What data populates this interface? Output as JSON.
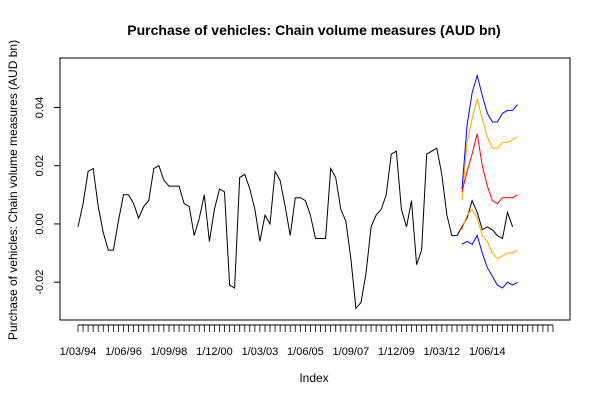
{
  "chart_data": {
    "type": "line",
    "title": "Purchase of vehicles: Chain volume measures (AUD bn)",
    "xlabel": "Index",
    "ylabel": "Purchase of vehicles: Chain volume measures (AUD bn)",
    "xlim": [
      0,
      94
    ],
    "ylim": [
      -0.033,
      0.057
    ],
    "grid": false,
    "y_ticks": [
      {
        "value": -0.02,
        "label": "-0.02"
      },
      {
        "value": 0.0,
        "label": "0.00"
      },
      {
        "value": 0.02,
        "label": "0.02"
      },
      {
        "value": 0.04,
        "label": "0.04"
      }
    ],
    "x_ticks": [
      {
        "value": 0,
        "label": "1/03/94"
      },
      {
        "value": 9,
        "label": "1/06/96"
      },
      {
        "value": 18,
        "label": "1/09/98"
      },
      {
        "value": 27,
        "label": "1/12/00"
      },
      {
        "value": 36,
        "label": "1/03/03"
      },
      {
        "value": 45,
        "label": "1/06/05"
      },
      {
        "value": 54,
        "label": "1/09/07"
      },
      {
        "value": 63,
        "label": "1/12/09"
      },
      {
        "value": 72,
        "label": "1/03/12"
      },
      {
        "value": 81,
        "label": "1/06/14"
      }
    ],
    "series": [
      {
        "color": "#000000",
        "x": [
          0,
          1,
          2,
          3,
          4,
          5,
          6,
          7,
          8,
          9,
          10,
          11,
          12,
          13,
          14,
          15,
          16,
          17,
          18,
          19,
          20,
          21,
          22,
          23,
          24,
          25,
          26,
          27,
          28,
          29,
          30,
          31,
          32,
          33,
          34,
          35,
          36,
          37,
          38,
          39,
          40,
          41,
          42,
          43,
          44,
          45,
          46,
          47,
          48,
          49,
          50,
          51,
          52,
          53,
          54,
          55,
          56,
          57,
          58,
          59,
          60,
          61,
          62,
          63,
          64,
          65,
          66,
          67,
          68,
          69,
          70,
          71,
          72,
          73,
          74,
          75,
          76,
          77,
          78,
          79,
          80,
          81,
          82,
          83,
          84,
          85,
          86
        ],
        "values": [
          -0.001,
          0.007,
          0.018,
          0.019,
          0.006,
          -0.003,
          -0.009,
          -0.009,
          0.001,
          0.01,
          0.01,
          0.007,
          0.002,
          0.006,
          0.008,
          0.019,
          0.02,
          0.015,
          0.013,
          0.013,
          0.013,
          0.007,
          0.006,
          -0.004,
          0.002,
          0.01,
          -0.006,
          0.005,
          0.012,
          0.011,
          -0.021,
          -0.022,
          0.016,
          0.017,
          0.012,
          0.005,
          -0.006,
          0.003,
          0.0,
          0.018,
          0.015,
          0.006,
          -0.004,
          0.009,
          0.009,
          0.008,
          0.003,
          -0.005,
          -0.005,
          -0.005,
          0.019,
          0.016,
          0.005,
          0.001,
          -0.012,
          -0.029,
          -0.027,
          -0.017,
          -0.001,
          0.003,
          0.005,
          0.01,
          0.024,
          0.025,
          0.005,
          -0.001,
          0.008,
          -0.014,
          -0.009,
          0.024,
          0.025,
          0.026,
          0.017,
          0.003,
          -0.004,
          -0.004,
          -0.001,
          0.002,
          0.008,
          0.004,
          -0.002,
          -0.001,
          -0.002,
          -0.004,
          -0.005,
          0.004,
          -0.001
        ]
      },
      {
        "color": "#0000ff",
        "x": [
          76,
          77,
          78,
          79,
          80,
          81,
          82,
          83,
          84,
          85,
          86,
          87
        ],
        "values": [
          0.012,
          0.034,
          0.045,
          0.051,
          0.044,
          0.038,
          0.035,
          0.035,
          0.038,
          0.039,
          0.039,
          0.041
        ]
      },
      {
        "color": "#ffa500",
        "x": [
          76,
          77,
          78,
          79,
          80,
          81,
          82,
          83,
          84,
          85,
          86,
          87
        ],
        "values": [
          0.008,
          0.028,
          0.036,
          0.043,
          0.036,
          0.03,
          0.026,
          0.026,
          0.028,
          0.028,
          0.029,
          0.03
        ]
      },
      {
        "color": "#ff0000",
        "x": [
          76,
          77,
          78,
          79,
          80,
          81,
          82,
          83,
          84,
          85,
          86,
          87
        ],
        "values": [
          0.011,
          0.018,
          0.024,
          0.031,
          0.02,
          0.013,
          0.008,
          0.007,
          0.009,
          0.009,
          0.009,
          0.01
        ]
      },
      {
        "color": "#ffa500",
        "x": [
          76,
          77,
          78,
          79,
          80,
          81,
          82,
          83,
          84,
          85,
          86,
          87
        ],
        "values": [
          -0.002,
          0.003,
          0.005,
          0.002,
          -0.004,
          -0.006,
          -0.01,
          -0.012,
          -0.011,
          -0.01,
          -0.01,
          -0.009
        ]
      },
      {
        "color": "#0000ff",
        "x": [
          76,
          77,
          78,
          79,
          80,
          81,
          82,
          83,
          84,
          85,
          86,
          87
        ],
        "values": [
          -0.007,
          -0.006,
          -0.007,
          -0.004,
          -0.01,
          -0.015,
          -0.018,
          -0.021,
          -0.022,
          -0.02,
          -0.021,
          -0.02
        ]
      }
    ]
  }
}
